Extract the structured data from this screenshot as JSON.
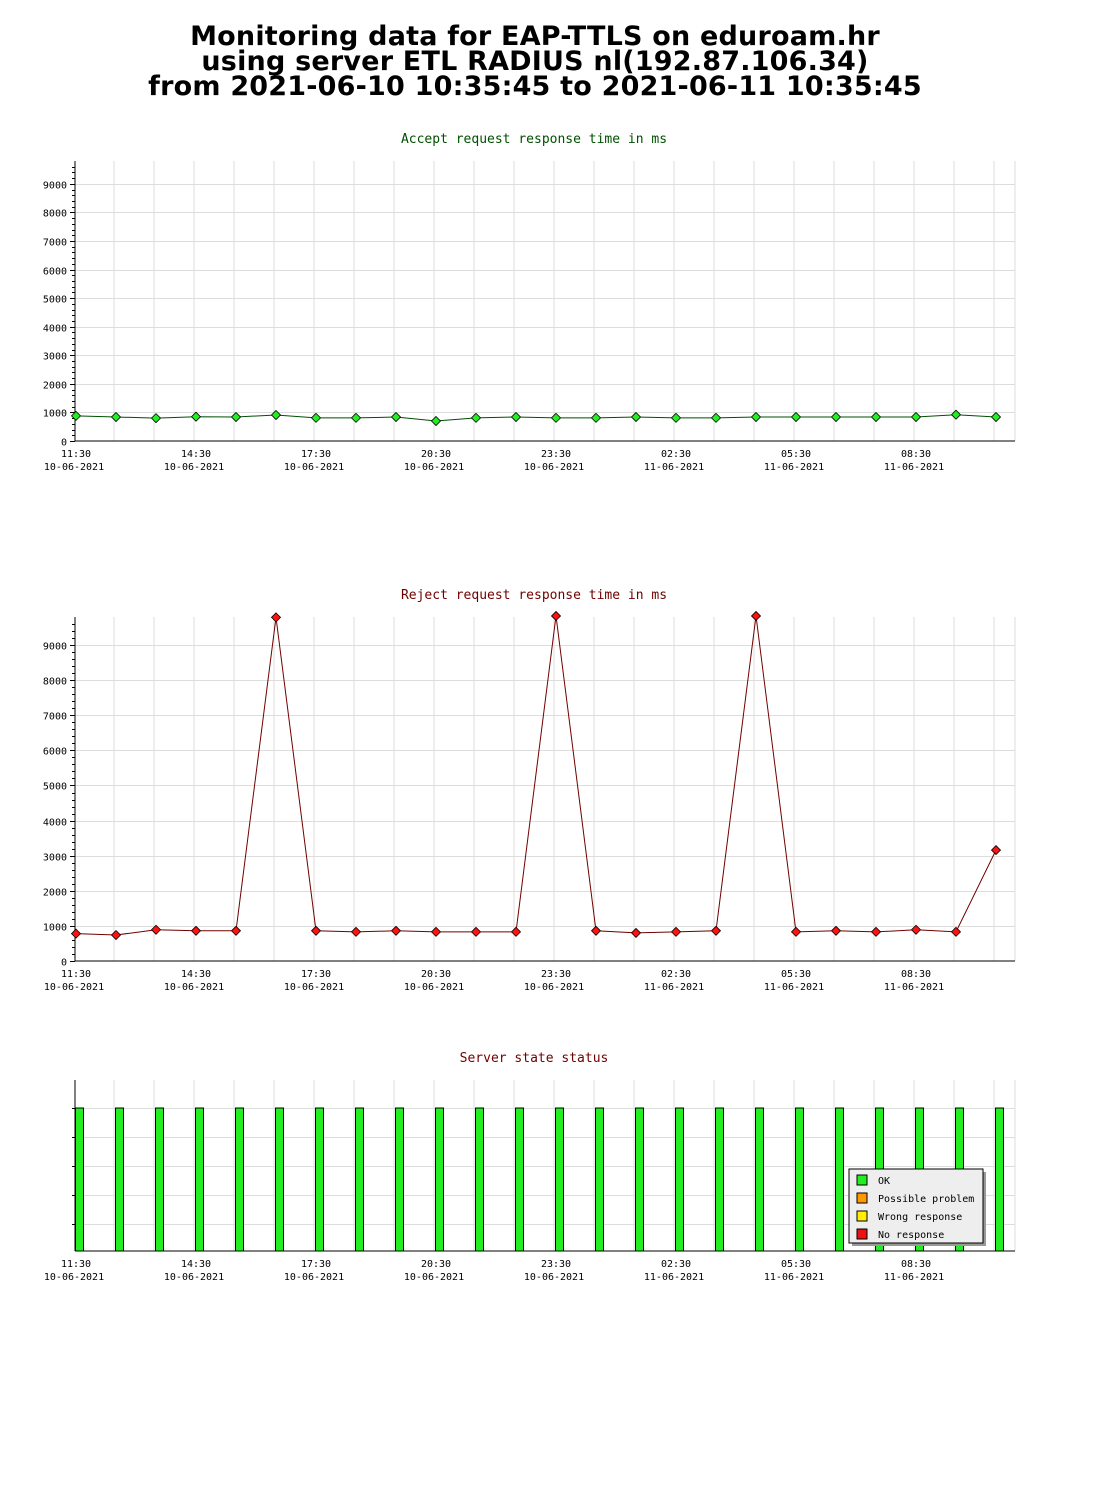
{
  "header": {
    "line1": "Monitoring data for EAP-TTLS on eduroam.hr",
    "line2": "using server ETL RADIUS nl(192.87.106.34)",
    "line3": "from 2021-06-10 10:35:45 to 2021-06-11 10:35:45"
  },
  "colors": {
    "accept_line": "#005000",
    "accept_marker": "#22ee22",
    "reject_line": "#700000",
    "reject_marker": "#ff1111",
    "grid": "#dddddd",
    "status_ok": "#22ee22",
    "status_possible_problem": "#ff9900",
    "status_wrong_response": "#ffee00",
    "status_no_response": "#ee1111"
  },
  "x_ticks": [
    {
      "time": "11:30",
      "date": "10-06-2021"
    },
    {
      "time": "14:30",
      "date": "10-06-2021"
    },
    {
      "time": "17:30",
      "date": "10-06-2021"
    },
    {
      "time": "20:30",
      "date": "10-06-2021"
    },
    {
      "time": "23:30",
      "date": "10-06-2021"
    },
    {
      "time": "02:30",
      "date": "11-06-2021"
    },
    {
      "time": "05:30",
      "date": "11-06-2021"
    },
    {
      "time": "08:30",
      "date": "11-06-2021"
    }
  ],
  "chart_data": [
    {
      "type": "line",
      "title": "Accept request response time in ms",
      "ylim": [
        0,
        9800
      ],
      "y_ticks": [
        0,
        1000,
        2000,
        3000,
        4000,
        5000,
        6000,
        7000,
        8000,
        9000
      ],
      "grid": true,
      "x": [
        "2021-06-10 11:30",
        "2021-06-10 12:30",
        "2021-06-10 13:30",
        "2021-06-10 14:30",
        "2021-06-10 15:30",
        "2021-06-10 16:30",
        "2021-06-10 17:30",
        "2021-06-10 18:30",
        "2021-06-10 19:30",
        "2021-06-10 20:30",
        "2021-06-10 21:30",
        "2021-06-10 22:30",
        "2021-06-10 23:30",
        "2021-06-11 00:30",
        "2021-06-11 01:30",
        "2021-06-11 02:30",
        "2021-06-11 03:30",
        "2021-06-11 04:30",
        "2021-06-11 05:30",
        "2021-06-11 06:30",
        "2021-06-11 07:30",
        "2021-06-11 08:30",
        "2021-06-11 09:30",
        "2021-06-11 10:30"
      ],
      "values": [
        880,
        840,
        800,
        850,
        840,
        910,
        810,
        810,
        840,
        700,
        810,
        840,
        810,
        810,
        840,
        810,
        810,
        840,
        840,
        840,
        840,
        840,
        920,
        840
      ]
    },
    {
      "type": "line",
      "title": "Reject request response time in ms",
      "ylim": [
        0,
        9800
      ],
      "y_ticks": [
        0,
        1000,
        2000,
        3000,
        4000,
        5000,
        6000,
        7000,
        8000,
        9000
      ],
      "grid": true,
      "x": [
        "2021-06-10 11:30",
        "2021-06-10 12:30",
        "2021-06-10 13:30",
        "2021-06-10 14:30",
        "2021-06-10 15:30",
        "2021-06-10 16:30",
        "2021-06-10 17:30",
        "2021-06-10 18:30",
        "2021-06-10 19:30",
        "2021-06-10 20:30",
        "2021-06-10 21:30",
        "2021-06-10 22:30",
        "2021-06-10 23:30",
        "2021-06-11 00:30",
        "2021-06-11 01:30",
        "2021-06-11 02:30",
        "2021-06-11 03:30",
        "2021-06-11 04:30",
        "2021-06-11 05:30",
        "2021-06-11 06:30",
        "2021-06-11 07:30",
        "2021-06-11 08:30",
        "2021-06-11 09:30",
        "2021-06-11 10:30"
      ],
      "values": [
        780,
        740,
        890,
        860,
        860,
        9790,
        860,
        830,
        860,
        830,
        830,
        830,
        9830,
        860,
        800,
        830,
        860,
        9830,
        830,
        860,
        830,
        890,
        830,
        3160
      ]
    },
    {
      "type": "bar",
      "title": "Server state status",
      "grid": true,
      "x": [
        "2021-06-10 11:30",
        "2021-06-10 12:30",
        "2021-06-10 13:30",
        "2021-06-10 14:30",
        "2021-06-10 15:30",
        "2021-06-10 16:30",
        "2021-06-10 17:30",
        "2021-06-10 18:30",
        "2021-06-10 19:30",
        "2021-06-10 20:30",
        "2021-06-10 21:30",
        "2021-06-10 22:30",
        "2021-06-10 23:30",
        "2021-06-11 00:30",
        "2021-06-11 01:30",
        "2021-06-11 02:30",
        "2021-06-11 03:30",
        "2021-06-11 04:30",
        "2021-06-11 05:30",
        "2021-06-11 06:30",
        "2021-06-11 07:30",
        "2021-06-11 08:30",
        "2021-06-11 09:30",
        "2021-06-11 10:30"
      ],
      "states": [
        "OK",
        "OK",
        "OK",
        "OK",
        "OK",
        "OK",
        "OK",
        "OK",
        "OK",
        "OK",
        "OK",
        "OK",
        "OK",
        "OK",
        "OK",
        "OK",
        "OK",
        "OK",
        "OK",
        "OK",
        "OK",
        "OK",
        "OK",
        "OK"
      ],
      "legend": [
        "OK",
        "Possible problem",
        "Wrong response",
        "No response"
      ],
      "legend_position": "bottom-right"
    }
  ]
}
